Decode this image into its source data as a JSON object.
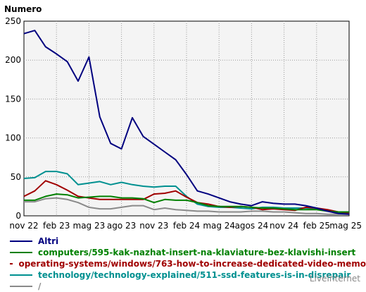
{
  "chart_data": {
    "type": "line",
    "ylabel": "Numero",
    "ylim": [
      0,
      250
    ],
    "yticks": [
      0,
      50,
      100,
      150,
      200,
      250
    ],
    "grid": true,
    "x": [
      "2022-11",
      "2022-12",
      "2023-01",
      "2023-02",
      "2023-03",
      "2023-04",
      "2023-05",
      "2023-06",
      "2023-07",
      "2023-08",
      "2023-09",
      "2023-10",
      "2023-11",
      "2023-12",
      "2024-01",
      "2024-02",
      "2024-03",
      "2024-04",
      "2024-05",
      "2024-06",
      "2024-07",
      "2024-08",
      "2024-09",
      "2024-10",
      "2024-11",
      "2024-12",
      "2025-01",
      "2025-02",
      "2025-03",
      "2025-04",
      "2025-05"
    ],
    "xtick_labels": [
      "nov 22",
      "feb 23",
      "mag 23",
      "ago 23",
      "nov 23",
      "feb 24",
      "mag 24",
      "agos 24",
      "nov 24",
      "feb 25",
      "mag 25"
    ],
    "xtick_positions": [
      0,
      3,
      6,
      9,
      12,
      15,
      18,
      21,
      24,
      27,
      30
    ],
    "legend_placement": "bottom",
    "series": [
      {
        "name": "Altri",
        "color": "#00007f",
        "values": [
          234,
          238,
          217,
          208,
          198,
          173,
          204,
          127,
          93,
          86,
          126,
          102,
          92,
          82,
          72,
          53,
          32,
          28,
          23,
          18,
          15,
          13,
          18,
          16,
          15,
          15,
          13,
          10,
          6,
          3,
          2
        ]
      },
      {
        "name": "computers/595-kak-nazhat-insert-na-klaviature-bez-klavishi-insert",
        "color": "#008000",
        "values": [
          20,
          20,
          25,
          28,
          27,
          23,
          24,
          25,
          25,
          23,
          23,
          22,
          17,
          21,
          20,
          20,
          17,
          13,
          12,
          12,
          12,
          11,
          10,
          10,
          9,
          8,
          8,
          8,
          6,
          5,
          5
        ]
      },
      {
        "name": "operating-systems/windows/763-how-to-increase-dedicated-video-memo",
        "color": "#a00000",
        "values": [
          25,
          32,
          45,
          40,
          33,
          25,
          23,
          21,
          21,
          21,
          21,
          21,
          28,
          29,
          32,
          24,
          17,
          15,
          12,
          11,
          12,
          11,
          8,
          9,
          8,
          7,
          11,
          10,
          8,
          5,
          4
        ]
      },
      {
        "name": "technology/technology-explained/511-ssd-features-is-in-disrepair",
        "color": "#009090",
        "values": [
          48,
          49,
          57,
          57,
          54,
          40,
          42,
          44,
          40,
          43,
          40,
          38,
          37,
          38,
          38,
          25,
          15,
          12,
          11,
          11,
          10,
          9,
          11,
          11,
          10,
          10,
          10,
          9,
          7,
          4,
          3
        ]
      },
      {
        "name": "/",
        "color": "#8a8a8a",
        "values": [
          18,
          18,
          22,
          23,
          21,
          17,
          11,
          9,
          9,
          11,
          13,
          13,
          8,
          10,
          8,
          7,
          6,
          6,
          5,
          5,
          5,
          6,
          6,
          5,
          5,
          4,
          3,
          3,
          2,
          2,
          2
        ]
      }
    ]
  },
  "footer": "LiveInternet"
}
